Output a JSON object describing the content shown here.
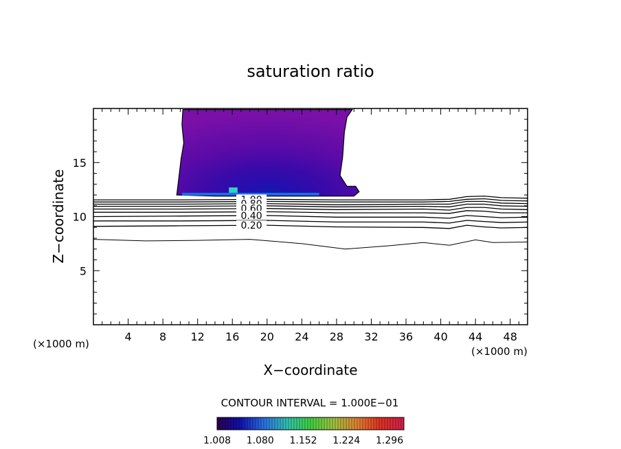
{
  "chart_data": {
    "type": "contour",
    "title": "saturation ratio",
    "xlabel": "X−coordinate",
    "ylabel": "Z−coordinate",
    "x_unit_left": "(×1000 m)",
    "x_unit_right": "(×1000 m)",
    "xlim": [
      0,
      50
    ],
    "ylim": [
      0,
      20
    ],
    "x_ticks": [
      4,
      8,
      12,
      16,
      20,
      24,
      28,
      32,
      36,
      40,
      44,
      48
    ],
    "y_ticks": [
      5,
      10,
      15
    ],
    "x_tick_labels": [
      "4",
      "8",
      "12",
      "16",
      "20",
      "24",
      "28",
      "32",
      "36",
      "40",
      "44",
      "48"
    ],
    "y_tick_labels": [
      "5",
      "10",
      "15"
    ],
    "contour_interval_text": "CONTOUR INTERVAL = 1.000E−01",
    "colorbar": {
      "min": 1.008,
      "max": 1.32,
      "labels": [
        "1.008",
        "1.080",
        "1.152",
        "1.224",
        "1.296"
      ],
      "colors": [
        "#2a0050",
        "#1010b0",
        "#2a70e0",
        "#30c0b0",
        "#40d040",
        "#a0c040",
        "#e08030",
        "#e03020",
        "#d02050"
      ]
    },
    "contour_line_labels": [
      "1.00",
      "0.80",
      "0.60",
      "0.40",
      "0.20"
    ],
    "contour_lines": [
      {
        "level": 1.0,
        "points": [
          [
            0,
            11.55
          ],
          [
            10,
            11.55
          ],
          [
            20,
            11.6
          ],
          [
            28,
            11.55
          ],
          [
            38,
            11.55
          ],
          [
            41,
            11.6
          ],
          [
            43,
            11.85
          ],
          [
            45,
            11.9
          ],
          [
            47,
            11.75
          ],
          [
            50,
            11.7
          ]
        ]
      },
      {
        "level": 0.9,
        "points": [
          [
            0,
            11.35
          ],
          [
            10,
            11.35
          ],
          [
            20,
            11.4
          ],
          [
            28,
            11.35
          ],
          [
            38,
            11.35
          ],
          [
            41,
            11.4
          ],
          [
            43,
            11.6
          ],
          [
            45,
            11.65
          ],
          [
            47,
            11.5
          ],
          [
            50,
            11.45
          ]
        ]
      },
      {
        "level": 0.8,
        "points": [
          [
            0,
            11.15
          ],
          [
            10,
            11.15
          ],
          [
            20,
            11.2
          ],
          [
            28,
            11.1
          ],
          [
            38,
            11.15
          ],
          [
            41,
            11.15
          ],
          [
            43,
            11.4
          ],
          [
            45,
            11.4
          ],
          [
            47,
            11.25
          ],
          [
            50,
            11.2
          ]
        ]
      },
      {
        "level": 0.7,
        "points": [
          [
            0,
            10.95
          ],
          [
            10,
            10.95
          ],
          [
            20,
            11.0
          ],
          [
            28,
            10.9
          ],
          [
            38,
            10.95
          ],
          [
            41,
            10.9
          ],
          [
            43,
            11.15
          ],
          [
            45,
            11.15
          ],
          [
            47,
            11.0
          ],
          [
            50,
            10.95
          ]
        ]
      },
      {
        "level": 0.6,
        "points": [
          [
            0,
            10.7
          ],
          [
            10,
            10.7
          ],
          [
            20,
            10.75
          ],
          [
            28,
            10.65
          ],
          [
            38,
            10.7
          ],
          [
            41,
            10.6
          ],
          [
            43,
            10.85
          ],
          [
            45,
            10.85
          ],
          [
            47,
            10.7
          ],
          [
            50,
            10.65
          ]
        ]
      },
      {
        "level": 0.5,
        "points": [
          [
            0,
            10.4
          ],
          [
            10,
            10.4
          ],
          [
            20,
            10.45
          ],
          [
            28,
            10.35
          ],
          [
            38,
            10.35
          ],
          [
            41,
            10.3
          ],
          [
            43,
            10.55
          ],
          [
            45,
            10.5
          ],
          [
            47,
            10.35
          ],
          [
            50,
            10.35
          ]
        ]
      },
      {
        "level": 0.4,
        "points": [
          [
            0,
            10.0
          ],
          [
            10,
            10.05
          ],
          [
            20,
            10.1
          ],
          [
            28,
            9.95
          ],
          [
            38,
            9.95
          ],
          [
            41,
            9.85
          ],
          [
            43,
            10.1
          ],
          [
            45,
            10.0
          ],
          [
            47,
            9.9
          ],
          [
            50,
            9.95
          ]
        ]
      },
      {
        "level": 0.3,
        "points": [
          [
            0,
            9.6
          ],
          [
            10,
            9.6
          ],
          [
            20,
            9.65
          ],
          [
            28,
            9.5
          ],
          [
            38,
            9.5
          ],
          [
            41,
            9.4
          ],
          [
            43,
            9.65
          ],
          [
            45,
            9.55
          ],
          [
            47,
            9.45
          ],
          [
            50,
            9.5
          ]
        ]
      },
      {
        "level": 0.2,
        "points": [
          [
            0,
            9.1
          ],
          [
            10,
            9.15
          ],
          [
            20,
            9.2
          ],
          [
            28,
            9.05
          ],
          [
            38,
            9.0
          ],
          [
            41,
            8.9
          ],
          [
            43,
            9.2
          ],
          [
            45,
            9.05
          ],
          [
            47,
            8.95
          ],
          [
            50,
            9.0
          ]
        ]
      },
      {
        "level": 0.1,
        "points": [
          [
            0,
            7.9
          ],
          [
            6,
            7.75
          ],
          [
            12,
            7.8
          ],
          [
            18,
            7.9
          ],
          [
            24,
            7.5
          ],
          [
            29,
            7.0
          ],
          [
            34,
            7.3
          ],
          [
            38,
            7.6
          ],
          [
            41,
            7.35
          ],
          [
            44,
            7.85
          ],
          [
            46,
            7.6
          ],
          [
            50,
            7.65
          ]
        ]
      }
    ],
    "supersaturated_region": {
      "description_levels": [
        1.008,
        1.032,
        1.056,
        1.08,
        1.104,
        1.128,
        1.152,
        1.176
      ],
      "outline": [
        [
          10.3,
          19.9
        ],
        [
          10.2,
          18.5
        ],
        [
          10.4,
          16.8
        ],
        [
          10.1,
          15.4
        ],
        [
          9.9,
          14.0
        ],
        [
          9.6,
          12.0
        ],
        [
          14,
          11.9
        ],
        [
          20,
          11.9
        ],
        [
          26,
          11.9
        ],
        [
          28,
          11.9
        ],
        [
          30.0,
          11.9
        ],
        [
          30.6,
          12.3
        ],
        [
          30.2,
          12.8
        ],
        [
          29.2,
          12.8
        ],
        [
          28.4,
          13.8
        ],
        [
          28.7,
          15.5
        ],
        [
          28.9,
          17.8
        ],
        [
          29.2,
          19.2
        ],
        [
          29.8,
          19.9
        ]
      ]
    }
  }
}
